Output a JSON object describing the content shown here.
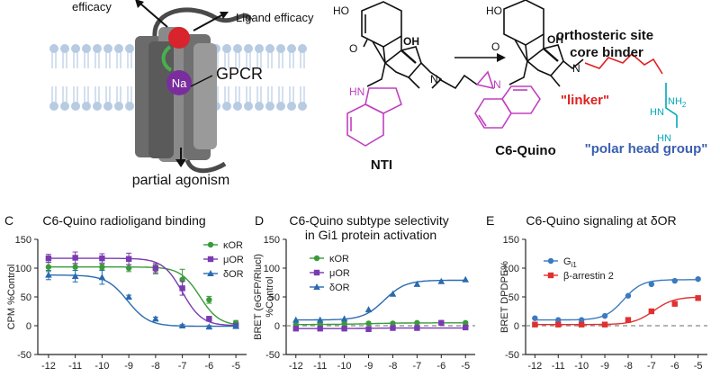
{
  "top": {
    "gpcr": {
      "efficacy_label": "efficacy",
      "ligand_efficacy_label": "Ligand efficacy",
      "na_label": "Na",
      "gpcr_label": "GPCR",
      "partial_agonism_label": "partial agonism"
    },
    "molecules": {
      "nti": {
        "name": "NTI",
        "atoms": {
          "ho": "HO",
          "o": "O",
          "oh": "OH",
          "n": "N",
          "hn": "HN"
        }
      },
      "c6": {
        "name": "C6-Quino",
        "atoms": {
          "ho": "HO",
          "o": "O",
          "oh": "OH",
          "n": "N",
          "n_quino": "N",
          "hn1": "HN",
          "hn2": "HN",
          "nh2": "NH"
        },
        "nh2_sub": "2",
        "annotation_core": [
          "orthosteric site",
          "core binder"
        ],
        "annotation_linker": "\"linker\"",
        "annotation_head": "\"polar head group\""
      }
    },
    "colors": {
      "magenta": "#c040c0",
      "red": "#e02020",
      "blue": "#3a5fb0",
      "cyan": "#00a8b8"
    }
  },
  "panels": {
    "C": {
      "letter": "C",
      "title": "C6-Quino radioligand binding"
    },
    "D": {
      "letter": "D",
      "title_lines": [
        "C6-Quino subtype selectivity",
        "in Gi1 protein activation"
      ]
    },
    "E": {
      "letter": "E",
      "title": "C6-Quino signaling at δOR"
    }
  },
  "chart_data": [
    {
      "type": "line",
      "title": "C6-Quino radioligand binding",
      "xlabel": "",
      "ylabel": "CPM %Control",
      "xlim": [
        -12.4,
        -4.6
      ],
      "ylim": [
        -50,
        150
      ],
      "xticks": [
        "-12",
        "-11",
        "-10",
        "-9",
        "-8",
        "-7",
        "-6",
        "-5"
      ],
      "yticks": [
        "-50",
        "0",
        "50",
        "100",
        "150"
      ],
      "legend": "top-right",
      "series": [
        {
          "name": "κOR",
          "color": "#3a9a3a",
          "marker": "circle",
          "x": [
            -12,
            -11,
            -10,
            -9,
            -8,
            -7,
            -6,
            -5
          ],
          "y": [
            102,
            102,
            102,
            100,
            98,
            80,
            45,
            5
          ],
          "err": [
            8,
            6,
            5,
            6,
            8,
            18,
            6,
            4
          ],
          "fit": {
            "top": 102,
            "bottom": 0,
            "logec50": -6.35,
            "hill": 1.2
          }
        },
        {
          "name": "μOR",
          "color": "#7a3ab0",
          "marker": "square",
          "x": [
            -12,
            -11,
            -10,
            -9,
            -8,
            -7,
            -6,
            -5
          ],
          "y": [
            117,
            118,
            117,
            116,
            100,
            65,
            12,
            0
          ],
          "err": [
            7,
            10,
            8,
            10,
            8,
            12,
            4,
            3
          ],
          "fit": {
            "top": 117,
            "bottom": 0,
            "logec50": -7.0,
            "hill": 1.2
          }
        },
        {
          "name": "δOR",
          "color": "#2a6ab0",
          "marker": "triangle",
          "x": [
            -12,
            -11,
            -10,
            -9,
            -8,
            -7,
            -6,
            -5
          ],
          "y": [
            88,
            86,
            84,
            50,
            12,
            0,
            -2,
            -1
          ],
          "err": [
            8,
            10,
            12,
            3,
            3,
            2,
            2,
            2
          ],
          "fit": {
            "top": 88,
            "bottom": -1,
            "logec50": -9.05,
            "hill": 1.1
          }
        }
      ]
    },
    {
      "type": "line",
      "title": "C6-Quino subtype selectivity in Gi1 protein activation",
      "xlabel": "",
      "ylabel": "BRET (eGFP/Rlucl) %Control",
      "ylabel_lines": [
        "BRET (eGFP/Rlucl)",
        "%Control"
      ],
      "xlim": [
        -12.4,
        -4.6
      ],
      "ylim": [
        -50,
        150
      ],
      "xticks": [
        "-12",
        "-11",
        "-10",
        "-9",
        "-8",
        "-7",
        "-6",
        "-5"
      ],
      "yticks": [
        "-50",
        "0",
        "50",
        "100",
        "150"
      ],
      "legend": "top-left",
      "series": [
        {
          "name": "κOR",
          "color": "#3a9a3a",
          "marker": "circle",
          "x": [
            -12,
            -11,
            -10,
            -9,
            -8,
            -7,
            -6,
            -5
          ],
          "y": [
            2,
            3,
            4,
            4,
            4,
            5,
            5,
            5
          ],
          "fit": {
            "top": 5,
            "bottom": 2,
            "logec50": -9,
            "hill": 0.6
          }
        },
        {
          "name": "μOR",
          "color": "#7a3ab0",
          "marker": "square",
          "x": [
            -12,
            -11,
            -10,
            -9,
            -8,
            -7,
            -6,
            -5
          ],
          "y": [
            -5,
            -5,
            -5,
            -6,
            -4,
            -4,
            5,
            -3
          ],
          "fit": {
            "top": -4,
            "bottom": -5,
            "logec50": -9,
            "hill": 1
          }
        },
        {
          "name": "δOR",
          "color": "#2a6ab0",
          "marker": "triangle",
          "x": [
            -12,
            -11,
            -10,
            -9,
            -8,
            -7,
            -6,
            -5
          ],
          "y": [
            10,
            10,
            12,
            28,
            55,
            72,
            77,
            80
          ],
          "fit": {
            "top": 79,
            "bottom": 10,
            "logec50": -8.35,
            "hill": 1.0
          }
        }
      ],
      "reference_line": 0
    },
    {
      "type": "line",
      "title": "C6-Quino signaling at δOR",
      "xlabel": "",
      "ylabel": "BRET DPDPE%",
      "xlim": [
        -12.4,
        -4.6
      ],
      "ylim": [
        -50,
        150
      ],
      "xticks": [
        "-12",
        "-11",
        "-10",
        "-9",
        "-8",
        "-7",
        "-6",
        "-5"
      ],
      "yticks": [
        "-50",
        "0",
        "50",
        "100",
        "150"
      ],
      "legend": "top-left",
      "series": [
        {
          "name": "G",
          "name_sub": "i1",
          "color": "#3a7ac0",
          "marker": "circle",
          "x": [
            -12,
            -11,
            -10,
            -9,
            -8,
            -7,
            -6,
            -5
          ],
          "y": [
            13,
            10,
            10,
            17,
            52,
            72,
            78,
            81
          ],
          "fit": {
            "top": 80,
            "bottom": 10,
            "logec50": -8.2,
            "hill": 1.1
          }
        },
        {
          "name": "β-arrestin 2",
          "color": "#e03030",
          "marker": "square",
          "x": [
            -12,
            -11,
            -10,
            -9,
            -8,
            -7,
            -6,
            -5
          ],
          "y": [
            2,
            2,
            2,
            2,
            10,
            25,
            38,
            48
          ],
          "fit": {
            "top": 50,
            "bottom": 2,
            "logec50": -6.9,
            "hill": 1.0
          }
        }
      ],
      "reference_line": 0
    }
  ]
}
